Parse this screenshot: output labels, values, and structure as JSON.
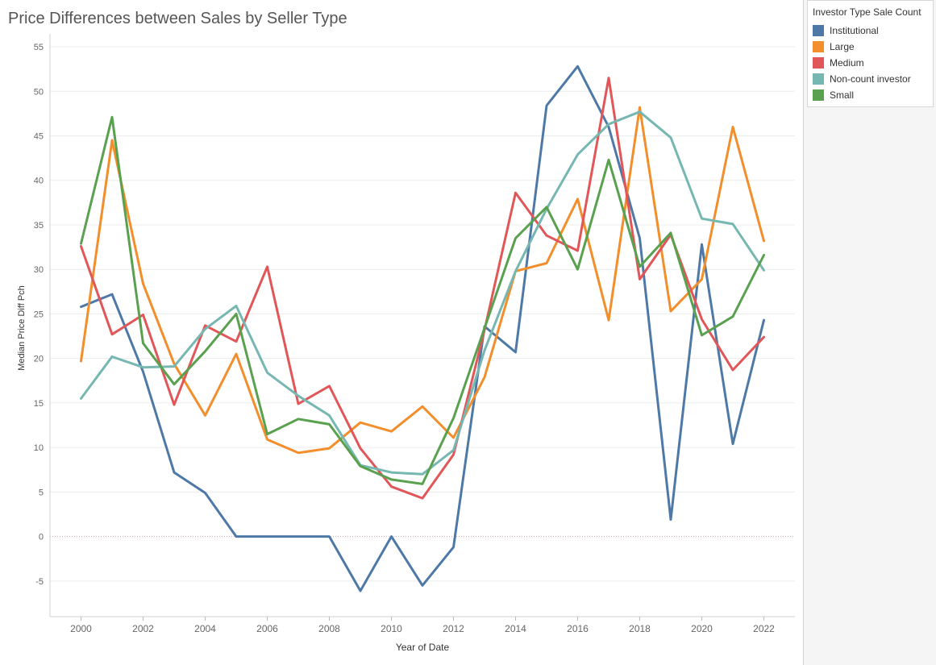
{
  "chart_data": {
    "type": "line",
    "title": "Price Differences between Sales by Seller Type",
    "xlabel": "Year of Date",
    "ylabel": "Median Price Diff Pch",
    "xlim": [
      1999,
      2023
    ],
    "ylim": [
      -9,
      56
    ],
    "x_ticks": [
      2000,
      2002,
      2004,
      2006,
      2008,
      2010,
      2012,
      2014,
      2016,
      2018,
      2020,
      2022
    ],
    "y_ticks": [
      -5,
      0,
      5,
      10,
      15,
      20,
      25,
      30,
      35,
      40,
      45,
      50,
      55
    ],
    "grid": true,
    "zero_reference_line": true,
    "legend_position": "right",
    "legend_title": "Investor Type Sale Count",
    "x": [
      2000,
      2001,
      2002,
      2003,
      2004,
      2005,
      2006,
      2007,
      2008,
      2009,
      2010,
      2011,
      2012,
      2013,
      2014,
      2015,
      2016,
      2017,
      2018,
      2019,
      2020,
      2021,
      2022
    ],
    "series": [
      {
        "name": "Institutional",
        "color": "#4e79a7",
        "values": [
          25.8,
          27.2,
          18.5,
          7.2,
          4.9,
          0.0,
          0.0,
          0.0,
          0.0,
          -6.1,
          0.0,
          -5.5,
          -1.2,
          23.6,
          20.7,
          48.4,
          52.8,
          46.0,
          33.5,
          1.9,
          32.8,
          10.4,
          24.3
        ]
      },
      {
        "name": "Large",
        "color": "#f28e2b",
        "values": [
          19.7,
          44.5,
          28.4,
          19.4,
          13.6,
          20.5,
          10.9,
          9.4,
          9.9,
          12.8,
          11.8,
          14.6,
          11.1,
          17.9,
          29.8,
          30.7,
          37.9,
          24.3,
          48.2,
          25.3,
          28.9,
          46.0,
          33.2
        ]
      },
      {
        "name": "Medium",
        "color": "#e15759",
        "values": [
          32.6,
          22.7,
          24.9,
          14.8,
          23.7,
          21.9,
          30.3,
          14.9,
          16.9,
          9.9,
          5.6,
          4.3,
          9.2,
          23.2,
          38.6,
          33.8,
          32.1,
          51.5,
          28.9,
          33.9,
          24.4,
          18.7,
          22.4
        ]
      },
      {
        "name": "Non-count investor",
        "color": "#76b7b2",
        "values": [
          15.5,
          20.2,
          19.0,
          19.1,
          23.3,
          25.9,
          18.4,
          15.8,
          13.6,
          8.0,
          7.2,
          7.0,
          9.7,
          20.9,
          29.8,
          36.8,
          42.9,
          46.3,
          47.7,
          44.8,
          35.7,
          35.1,
          29.9
        ]
      },
      {
        "name": "Small",
        "color": "#59a14f",
        "values": [
          32.9,
          47.1,
          21.7,
          17.1,
          20.8,
          25.0,
          11.5,
          13.2,
          12.6,
          7.9,
          6.4,
          5.9,
          13.3,
          23.4,
          33.5,
          37.0,
          30.0,
          42.3,
          30.3,
          34.1,
          22.6,
          24.7,
          31.6
        ]
      }
    ]
  }
}
